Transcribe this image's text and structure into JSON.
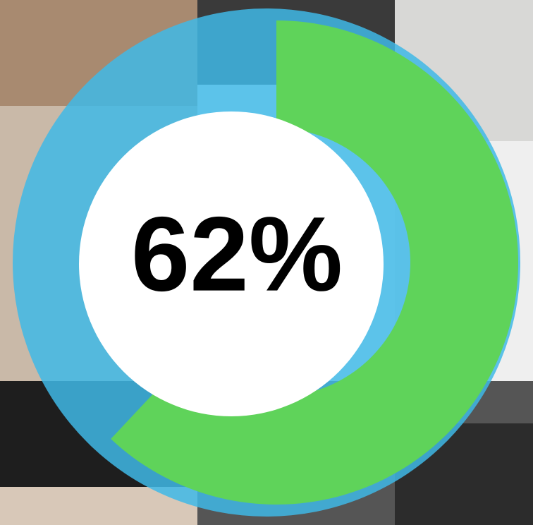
{
  "chart_data": {
    "type": "donut",
    "values": [
      62
    ],
    "value_labels": [
      "62%"
    ],
    "color": "#5fd35a",
    "track_color": "#3fb8e6"
  }
}
